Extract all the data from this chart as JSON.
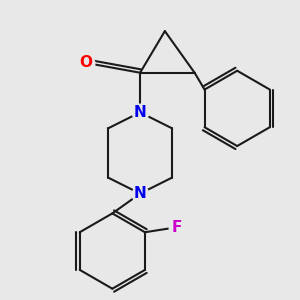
{
  "bg_color": "#e8e8e8",
  "bond_color": "#1a1a1a",
  "bond_width": 1.5,
  "atom_labels": {
    "O": {
      "color": "#ff0000",
      "fontsize": 11,
      "fontweight": "bold"
    },
    "N": {
      "color": "#0000ee",
      "fontsize": 11,
      "fontweight": "bold"
    },
    "F": {
      "color": "#cc00cc",
      "fontsize": 11,
      "fontweight": "bold"
    }
  },
  "scale": 1.0
}
